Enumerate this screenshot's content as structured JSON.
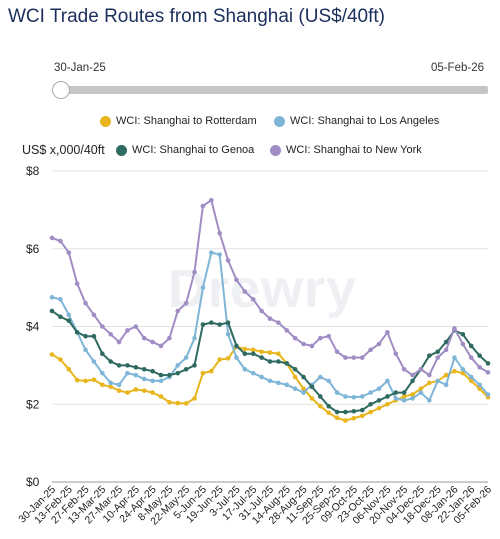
{
  "title": "WCI Trade Routes from Shanghai (US$/40ft)",
  "slider": {
    "start_label": "30-Jan-25",
    "end_label": "05-Feb-26"
  },
  "watermark": "Drewry",
  "chart_data": {
    "type": "line",
    "title": "WCI Trade Routes from Shanghai (US$/40ft)",
    "ylabel": "US$ x,000/40ft",
    "xlabel": "",
    "ylim": [
      0,
      8
    ],
    "yticks": [
      "$0",
      "$2",
      "$4",
      "$6",
      "$8"
    ],
    "ytick_values": [
      0,
      2,
      4,
      6,
      8
    ],
    "grid": "horizontal",
    "legend": "top",
    "x_tick_labels": [
      "30-Jan-25",
      "13-Feb-25",
      "27-Feb-25",
      "13-Mar-25",
      "27-Mar-25",
      "10-Apr-25",
      "24-Apr-25",
      "8-May-25",
      "22-May-25",
      "5-Jun-25",
      "19-Jun-25",
      "3-Jul-25",
      "17-Jul-25",
      "31-Jul-25",
      "14-Aug-25",
      "28-Aug-25",
      "11-Sep-25",
      "25-Sep-25",
      "09-Oct-25",
      "23-Oct-25",
      "06-Nov-25",
      "20-Nov-25",
      "04-Dec-25",
      "18-Dec-25",
      "08-Jan-26",
      "22-Jan-26",
      "05-Feb-26"
    ],
    "series": [
      {
        "name": "WCI: Shanghai to Rotterdam",
        "color": "#e8b51c",
        "values": [
          3.28,
          3.15,
          2.9,
          2.62,
          2.6,
          2.63,
          2.5,
          2.45,
          2.35,
          2.3,
          2.38,
          2.35,
          2.3,
          2.2,
          2.05,
          2.03,
          2.02,
          2.15,
          2.8,
          2.85,
          3.15,
          3.18,
          3.48,
          3.42,
          3.4,
          3.35,
          3.33,
          3.3,
          3.05,
          2.7,
          2.4,
          2.15,
          1.95,
          1.78,
          1.65,
          1.58,
          1.64,
          1.7,
          1.8,
          1.9,
          2.0,
          2.1,
          2.2,
          2.25,
          2.4,
          2.55,
          2.6,
          2.75,
          2.85,
          2.8,
          2.6,
          2.4,
          2.18
        ]
      },
      {
        "name": "WCI: Shanghai to Los Angeles",
        "color": "#7fb6d8",
        "values": [
          4.75,
          4.7,
          4.3,
          3.85,
          3.4,
          3.1,
          2.8,
          2.55,
          2.5,
          2.8,
          2.75,
          2.65,
          2.6,
          2.6,
          2.7,
          3.0,
          3.2,
          3.7,
          5.0,
          5.9,
          5.85,
          3.8,
          3.2,
          2.9,
          2.8,
          2.7,
          2.6,
          2.55,
          2.5,
          2.4,
          2.3,
          2.5,
          2.7,
          2.6,
          2.3,
          2.2,
          2.18,
          2.2,
          2.3,
          2.4,
          2.6,
          2.15,
          2.1,
          2.15,
          2.3,
          2.1,
          2.6,
          2.5,
          3.2,
          2.9,
          2.7,
          2.5,
          2.25
        ]
      },
      {
        "name": "WCI: Shanghai to Genoa",
        "color": "#2f6a60",
        "values": [
          4.4,
          4.25,
          4.15,
          3.85,
          3.75,
          3.75,
          3.3,
          3.1,
          3.0,
          3.0,
          2.95,
          2.9,
          2.85,
          2.75,
          2.75,
          2.8,
          2.9,
          3.0,
          4.05,
          4.1,
          4.05,
          4.1,
          3.5,
          3.3,
          3.3,
          3.2,
          3.1,
          3.1,
          3.05,
          2.9,
          2.7,
          2.45,
          2.2,
          1.95,
          1.8,
          1.8,
          1.82,
          1.85,
          2.0,
          2.1,
          2.2,
          2.3,
          2.3,
          2.6,
          2.9,
          3.25,
          3.35,
          3.6,
          3.9,
          3.8,
          3.5,
          3.25,
          3.05
        ]
      },
      {
        "name": "WCI: Shanghai to New York",
        "color": "#a08dc4",
        "values": [
          6.28,
          6.2,
          5.9,
          5.1,
          4.6,
          4.3,
          4.0,
          3.8,
          3.6,
          3.9,
          4.0,
          3.7,
          3.6,
          3.5,
          3.7,
          4.4,
          4.6,
          5.4,
          7.1,
          7.25,
          6.4,
          5.7,
          5.2,
          4.9,
          4.7,
          4.4,
          4.2,
          4.1,
          3.9,
          3.7,
          3.55,
          3.5,
          3.7,
          3.75,
          3.35,
          3.2,
          3.2,
          3.2,
          3.4,
          3.55,
          3.85,
          3.3,
          2.9,
          2.75,
          2.9,
          2.75,
          3.2,
          3.4,
          3.95,
          3.55,
          3.2,
          2.95,
          2.82
        ]
      }
    ]
  }
}
